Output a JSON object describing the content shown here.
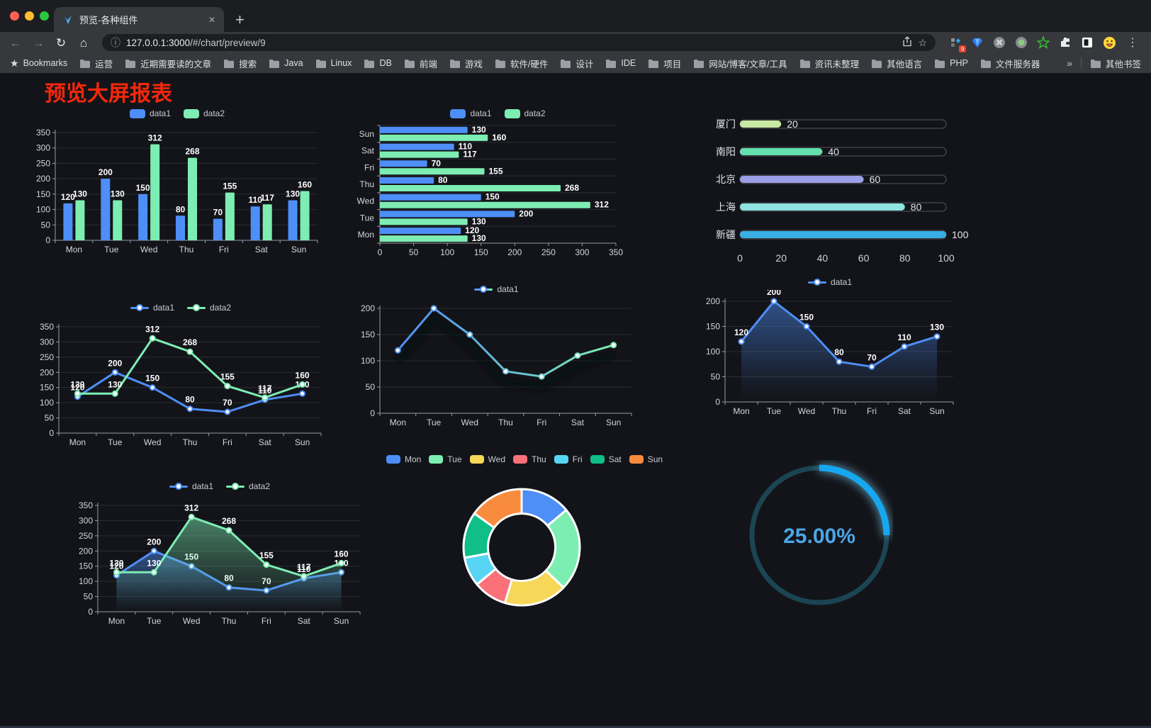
{
  "browser": {
    "traffic_lights": [
      "#FF5F57",
      "#FEBC2E",
      "#28C840"
    ],
    "tab": {
      "title": "预览-各种组件",
      "close_icon": "✕",
      "new_tab_icon": "+"
    },
    "nav": {
      "back": "←",
      "forward": "→",
      "reload": "↻",
      "home": "⌂"
    },
    "omnibox": {
      "info_icon": "ⓘ",
      "url_host": "127.0.0.1:3000",
      "url_path": "/#/chart/preview/9",
      "star_icon": "☆"
    },
    "extensions_badge": "9",
    "menu_icon": "⋮",
    "bookmarks_bar": {
      "root_label": "Bookmarks",
      "root_icon": "★",
      "folders": [
        "运营",
        "近期需要读的文章",
        "搜索",
        "Java",
        "Linux",
        "DB",
        "前端",
        "游戏",
        "软件/硬件",
        "设计",
        "IDE",
        "项目",
        "网站/博客/文章/工具",
        "资讯未整理",
        "其他语言",
        "PHP",
        "文件服务器"
      ],
      "overflow_icon": "»",
      "other_bookmarks": "其他书签"
    }
  },
  "page": {
    "title": "预览大屏报表",
    "title_color": "#F5270B"
  },
  "colors": {
    "blue": "#4E8EF7",
    "green": "#7DEDB3",
    "page_bg": "#131419",
    "grid": "#2A2C31",
    "axis": "#989DA5",
    "tick_text": "#D3D6DA",
    "value_label": "#FFFFFF",
    "legend_text": "#C8CCD2"
  },
  "chart_data": [
    {
      "id": "bar-grouped-vertical",
      "type": "bar",
      "categories": [
        "Mon",
        "Tue",
        "Wed",
        "Thu",
        "Fri",
        "Sat",
        "Sun"
      ],
      "series": [
        {
          "name": "data1",
          "color": "#4E8EF7",
          "values": [
            120,
            200,
            150,
            80,
            70,
            110,
            130
          ]
        },
        {
          "name": "data2",
          "color": "#7DEDB3",
          "values": [
            130,
            130,
            312,
            268,
            155,
            117,
            160
          ]
        }
      ],
      "ylim": [
        0,
        350
      ],
      "ytick_step": 50,
      "legend_position": "top",
      "grid": true,
      "value_labels": true
    },
    {
      "id": "bar-grouped-horizontal",
      "type": "bar",
      "orientation": "horizontal",
      "categories": [
        "Mon",
        "Tue",
        "Wed",
        "Thu",
        "Fri",
        "Sat",
        "Sun"
      ],
      "series": [
        {
          "name": "data1",
          "color": "#4E8EF7",
          "values": [
            120,
            200,
            150,
            80,
            70,
            110,
            130
          ]
        },
        {
          "name": "data2",
          "color": "#7DEDB3",
          "values": [
            130,
            130,
            312,
            268,
            155,
            117,
            160
          ]
        }
      ],
      "xlim": [
        0,
        350
      ],
      "xtick_step": 50,
      "legend_position": "top",
      "value_labels": true
    },
    {
      "id": "progress-bars",
      "type": "bar",
      "style": "progress",
      "orientation": "horizontal",
      "categories": [
        "厦门",
        "南阳",
        "北京",
        "上海",
        "新疆"
      ],
      "values": [
        20,
        40,
        60,
        80,
        100
      ],
      "colors": [
        "#C7E9A2",
        "#63E0AE",
        "#9B9FE8",
        "#8FE4E0",
        "#39AEE4"
      ],
      "xlim": [
        0,
        100
      ],
      "xticks": [
        0,
        20,
        40,
        60,
        80,
        100
      ],
      "value_labels": true
    },
    {
      "id": "line-two-series",
      "type": "line",
      "categories": [
        "Mon",
        "Tue",
        "Wed",
        "Thu",
        "Fri",
        "Sat",
        "Sun"
      ],
      "series": [
        {
          "name": "data1",
          "color": "#4E8EF7",
          "values": [
            120,
            200,
            150,
            80,
            70,
            110,
            130
          ]
        },
        {
          "name": "data2",
          "color": "#7DEDB3",
          "values": [
            130,
            130,
            312,
            268,
            155,
            117,
            160
          ]
        }
      ],
      "ylim": [
        0,
        350
      ],
      "ytick_step": 50,
      "legend_position": "top",
      "value_labels": true
    },
    {
      "id": "line-gradient-shadow",
      "type": "line",
      "shadow": true,
      "categories": [
        "Mon",
        "Tue",
        "Wed",
        "Thu",
        "Fri",
        "Sat",
        "Sun"
      ],
      "series": [
        {
          "name": "data1",
          "gradient": [
            "#4E8EF7",
            "#7DEDB3"
          ],
          "values": [
            120,
            200,
            150,
            80,
            70,
            110,
            130
          ]
        }
      ],
      "ylim": [
        0,
        200
      ],
      "ytick_step": 50,
      "legend_position": "top",
      "value_labels": false
    },
    {
      "id": "area-single",
      "type": "area",
      "categories": [
        "Mon",
        "Tue",
        "Wed",
        "Thu",
        "Fri",
        "Sat",
        "Sun"
      ],
      "series": [
        {
          "name": "data1",
          "color": "#4E8EF7",
          "values": [
            120,
            200,
            150,
            80,
            70,
            110,
            130
          ]
        }
      ],
      "ylim": [
        0,
        200
      ],
      "ytick_step": 50,
      "legend_position": "top",
      "value_labels": true
    },
    {
      "id": "area-two-series",
      "type": "area",
      "categories": [
        "Mon",
        "Tue",
        "Wed",
        "Thu",
        "Fri",
        "Sat",
        "Sun"
      ],
      "series": [
        {
          "name": "data1",
          "color": "#4E8EF7",
          "values": [
            120,
            200,
            150,
            80,
            70,
            110,
            130
          ]
        },
        {
          "name": "data2",
          "color": "#7DEDB3",
          "values": [
            130,
            130,
            312,
            268,
            155,
            117,
            160
          ]
        }
      ],
      "ylim": [
        0,
        350
      ],
      "ytick_step": 50,
      "legend_position": "top",
      "value_labels": true
    },
    {
      "id": "donut",
      "type": "pie",
      "inner_radius_ratio": 0.58,
      "legend_position": "top",
      "categories": [
        "Mon",
        "Tue",
        "Wed",
        "Thu",
        "Fri",
        "Sat",
        "Sun"
      ],
      "values": [
        120,
        200,
        150,
        80,
        70,
        110,
        130
      ],
      "colors": [
        "#4E8EF7",
        "#7CEEB2",
        "#F6D757",
        "#FB7179",
        "#58D5F5",
        "#0FBF85",
        "#F98B3F"
      ]
    },
    {
      "id": "gauge-progress",
      "type": "gauge",
      "value": 25,
      "max": 100,
      "label": "25.00%",
      "progress_color": "#17A7F0",
      "track_color": "#1B4552",
      "text_color": "#4BA6E8"
    }
  ]
}
